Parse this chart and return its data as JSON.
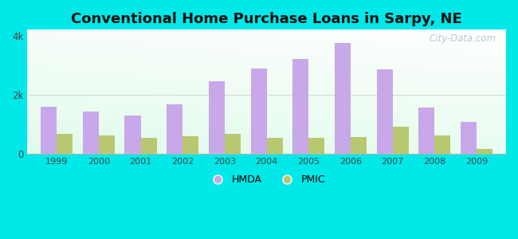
{
  "title": "Conventional Home Purchase Loans in Sarpy, NE",
  "years": [
    1999,
    2000,
    2001,
    2002,
    2003,
    2004,
    2005,
    2006,
    2007,
    2008,
    2009
  ],
  "hmda": [
    1600,
    1430,
    1300,
    1680,
    2450,
    2900,
    3200,
    3750,
    2850,
    1580,
    1080
  ],
  "pmic": [
    680,
    620,
    560,
    600,
    680,
    560,
    540,
    580,
    920,
    620,
    180
  ],
  "hmda_color": "#c8a8e8",
  "pmic_color": "#b8c870",
  "ylim": [
    0,
    4200
  ],
  "ytick_labels": [
    "0",
    "2k",
    "4k"
  ],
  "bar_width": 0.38,
  "outer_color": "#00e8e8",
  "plot_bg_colors": [
    "#c8f0e0",
    "#dff8ec",
    "#edfff5",
    "#f5fffc",
    "#f8fffd",
    "#ffffff"
  ],
  "title_fontsize": 13,
  "watermark": "City-Data.com"
}
